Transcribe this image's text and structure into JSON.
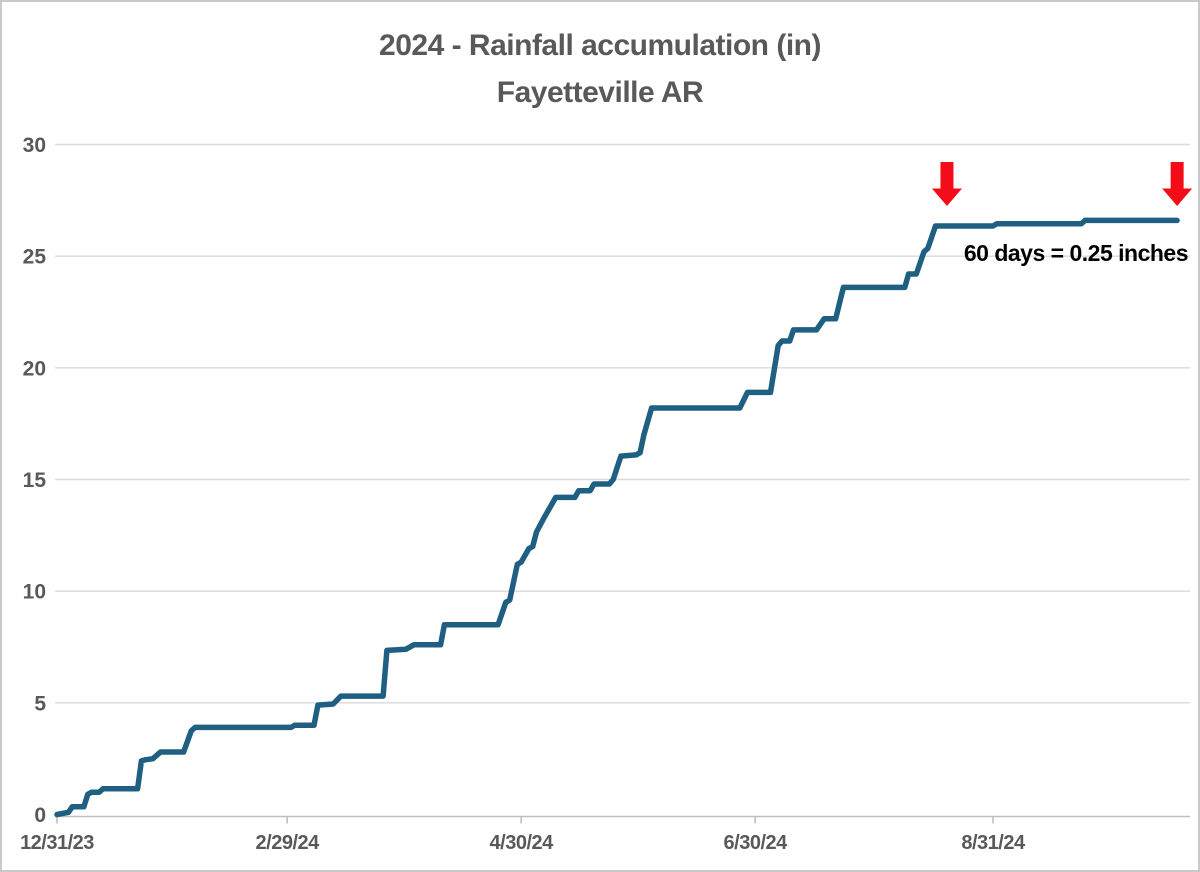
{
  "chart_data": {
    "type": "line",
    "title": "2024 - Rainfall accumulation (in)",
    "subtitle": "Fayetteville AR",
    "xlabel": "",
    "ylabel": "",
    "ylim": [
      0,
      30
    ],
    "y_ticks": [
      0,
      5,
      10,
      15,
      20,
      25,
      30
    ],
    "x_ticks": [
      "12/31/23",
      "2/29/24",
      "4/30/24",
      "6/30/24",
      "8/31/24"
    ],
    "x_range": [
      "12/31/23",
      "10/19/24"
    ],
    "grid": true,
    "legend_position": "none",
    "series": [
      {
        "name": "Rainfall accumulation (in)",
        "points": [
          [
            "12/31/23",
            0.0
          ],
          [
            "1/3/24",
            0.1
          ],
          [
            "1/4/24",
            0.35
          ],
          [
            "1/7/24",
            0.35
          ],
          [
            "1/8/24",
            0.9
          ],
          [
            "1/9/24",
            1.0
          ],
          [
            "1/11/24",
            1.0
          ],
          [
            "1/12/24",
            1.15
          ],
          [
            "1/21/24",
            1.15
          ],
          [
            "1/22/24",
            2.4
          ],
          [
            "1/23/24",
            2.45
          ],
          [
            "1/25/24",
            2.5
          ],
          [
            "1/26/24",
            2.65
          ],
          [
            "1/27/24",
            2.8
          ],
          [
            "2/2/24",
            2.8
          ],
          [
            "2/4/24",
            3.75
          ],
          [
            "2/5/24",
            3.9
          ],
          [
            "3/1/24",
            3.9
          ],
          [
            "3/2/24",
            4.0
          ],
          [
            "3/7/24",
            4.0
          ],
          [
            "3/8/24",
            4.9
          ],
          [
            "3/12/24",
            4.95
          ],
          [
            "3/14/24",
            5.3
          ],
          [
            "3/25/24",
            5.3
          ],
          [
            "3/26/24",
            7.35
          ],
          [
            "3/31/24",
            7.4
          ],
          [
            "4/2/24",
            7.6
          ],
          [
            "4/9/24",
            7.6
          ],
          [
            "4/10/24",
            8.5
          ],
          [
            "4/24/24",
            8.5
          ],
          [
            "4/26/24",
            9.5
          ],
          [
            "4/27/24",
            9.6
          ],
          [
            "4/29/24",
            11.2
          ],
          [
            "4/30/24",
            11.3
          ],
          [
            "5/2/24",
            11.9
          ],
          [
            "5/3/24",
            12.0
          ],
          [
            "5/4/24",
            12.65
          ],
          [
            "5/6/24",
            13.3
          ],
          [
            "5/9/24",
            14.2
          ],
          [
            "5/14/24",
            14.2
          ],
          [
            "5/15/24",
            14.5
          ],
          [
            "5/18/24",
            14.5
          ],
          [
            "5/19/24",
            14.8
          ],
          [
            "5/23/24",
            14.8
          ],
          [
            "5/24/24",
            15.0
          ],
          [
            "5/26/24",
            16.05
          ],
          [
            "5/30/24",
            16.1
          ],
          [
            "5/31/24",
            16.2
          ],
          [
            "6/1/24",
            17.0
          ],
          [
            "6/3/24",
            18.2
          ],
          [
            "6/26/24",
            18.2
          ],
          [
            "6/28/24",
            18.9
          ],
          [
            "7/4/24",
            18.9
          ],
          [
            "7/6/24",
            21.0
          ],
          [
            "7/7/24",
            21.2
          ],
          [
            "7/9/24",
            21.2
          ],
          [
            "7/10/24",
            21.7
          ],
          [
            "7/16/24",
            21.7
          ],
          [
            "7/18/24",
            22.2
          ],
          [
            "7/21/24",
            22.2
          ],
          [
            "7/23/24",
            23.6
          ],
          [
            "8/8/24",
            23.6
          ],
          [
            "8/9/24",
            24.2
          ],
          [
            "8/11/24",
            24.2
          ],
          [
            "8/13/24",
            25.2
          ],
          [
            "8/14/24",
            25.35
          ],
          [
            "8/16/24",
            26.35
          ],
          [
            "8/31/24",
            26.35
          ],
          [
            "9/1/24",
            26.45
          ],
          [
            "9/23/24",
            26.45
          ],
          [
            "9/24/24",
            26.6
          ],
          [
            "10/18/24",
            26.6
          ]
        ]
      }
    ],
    "annotation": {
      "text": "60 days = 0.25 inches"
    },
    "arrows": [
      {
        "icon": "down-arrow-icon",
        "points_at": "8/19/24"
      },
      {
        "icon": "down-arrow-icon",
        "points_at": "10/18/24"
      }
    ],
    "colors": {
      "line": "#1F6082",
      "arrow": "#F20D18",
      "title": "#595959",
      "axis_labels": "#595959",
      "gridline": "#D9D9D9",
      "axis_line": "#BFBFBF",
      "annotation": "#000000",
      "background": "#FFFFFF"
    }
  }
}
